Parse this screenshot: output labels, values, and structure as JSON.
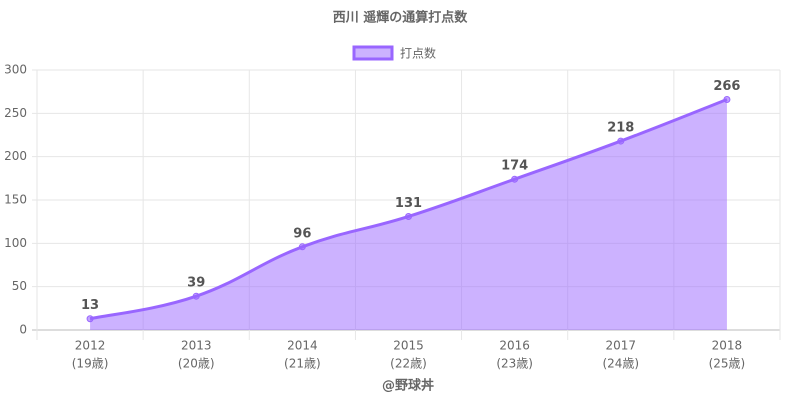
{
  "chart_data": {
    "type": "line",
    "title": "西川 遥輝の通算打点数",
    "categories": [
      [
        "2012",
        "(19歳)"
      ],
      [
        "2013",
        "(20歳)"
      ],
      [
        "2014",
        "(21歳)"
      ],
      [
        "2015",
        "(22歳)"
      ],
      [
        "2016",
        "(23歳)"
      ],
      [
        "2017",
        "(24歳)"
      ],
      [
        "2018",
        "(25歳)"
      ]
    ],
    "series": [
      {
        "name": "打点数",
        "color": "#9966ff",
        "values": [
          13,
          39,
          96,
          131,
          174,
          218,
          266
        ]
      }
    ],
    "x_label": "@野球丼",
    "ylim": [
      0,
      300
    ],
    "yticks": [
      0,
      50,
      100,
      150,
      200,
      250,
      300
    ],
    "grid": true,
    "fill": true,
    "legend": "top"
  }
}
